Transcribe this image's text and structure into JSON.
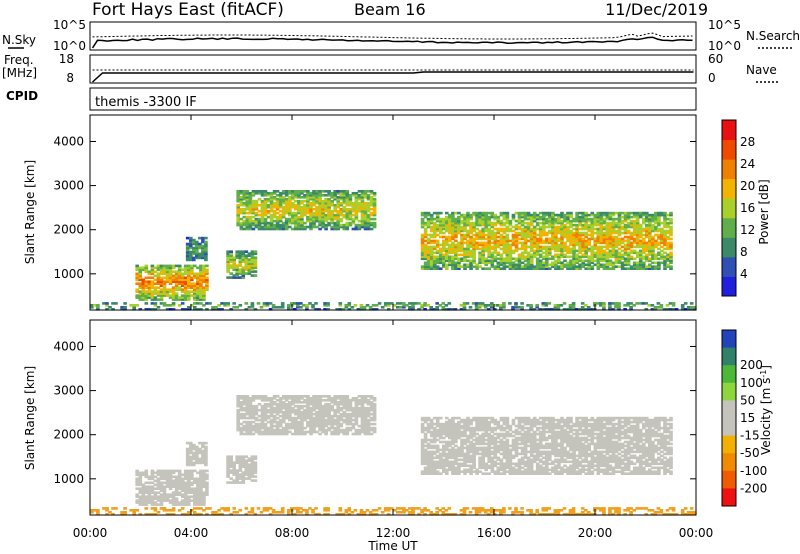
{
  "header": {
    "radar": "Fort Hays East (fitACF)",
    "beam": "Beam 16",
    "date": "11/Dec/2019"
  },
  "noise_panel": {
    "left_label": "N.Sky",
    "left_ticks": [
      "10^5",
      "10^0"
    ],
    "right_ticks": [
      "10^5",
      "10^0"
    ],
    "right_label": "N.Search"
  },
  "freq_panel": {
    "left_label_line1": "Freq.",
    "left_label_line2": "[MHz]",
    "left_ticks": [
      "18",
      "8"
    ],
    "right_ticks": [
      "60",
      "0"
    ],
    "right_label": "Nave"
  },
  "cpid_panel": {
    "label": "CPID",
    "text": "themis -3300 IF"
  },
  "colors": {
    "power": [
      "#1f1fdd",
      "#2f4fb4",
      "#3a8a6a",
      "#5fae4a",
      "#a8cf2a",
      "#f2b400",
      "#f08000",
      "#f04a00",
      "#e81010"
    ],
    "velocity": [
      "#ee1111",
      "#f05a00",
      "#f08a00",
      "#f2b000",
      "#c4c4bc",
      "#c4c4bc",
      "#8ed63e",
      "#4cb838",
      "#30806a",
      "#2244bb"
    ],
    "ground": "#f0a020"
  },
  "chart_data": [
    {
      "type": "heatmap",
      "title": "",
      "xlabel": "",
      "ylabel": "Slant Range [km]",
      "xlim": [
        "00:00",
        "24:00"
      ],
      "ylim": [
        180,
        4600
      ],
      "y_ticks": [
        "1000",
        "2000",
        "3000",
        "4000"
      ],
      "colorbar": {
        "label": "Power [dB]",
        "range": [
          0,
          32
        ],
        "ticks": [
          "4",
          "8",
          "12",
          "16",
          "20",
          "24",
          "28"
        ]
      },
      "echo_regions": [
        {
          "t_start": 1.8,
          "t_end": 4.6,
          "range_low": 400,
          "range_high": 1200,
          "power_db": 22
        },
        {
          "t_start": 3.8,
          "t_end": 4.6,
          "range_low": 1300,
          "range_high": 1800,
          "power_db": 10
        },
        {
          "t_start": 5.4,
          "t_end": 6.6,
          "range_low": 900,
          "range_high": 1500,
          "power_db": 16
        },
        {
          "t_start": 5.8,
          "t_end": 11.2,
          "range_low": 2000,
          "range_high": 2900,
          "power_db": 17
        },
        {
          "t_start": 13.1,
          "t_end": 23.0,
          "range_low": 1100,
          "range_high": 2400,
          "power_db": 19
        },
        {
          "t_start": 0.0,
          "t_end": 23.9,
          "range_low": 180,
          "range_high": 350,
          "power_db": 12
        }
      ]
    },
    {
      "type": "heatmap",
      "title": "",
      "xlabel": "Time UT",
      "ylabel": "Slant Range [km]",
      "xlim": [
        "00:00",
        "24:00"
      ],
      "ylim": [
        180,
        4600
      ],
      "y_ticks": [
        "1000",
        "2000",
        "3000",
        "4000"
      ],
      "x_ticks": [
        "00:00",
        "04:00",
        "08:00",
        "12:00",
        "16:00",
        "20:00",
        "00:00"
      ],
      "colorbar": {
        "label": "Velocity [m s-1]",
        "tick_values": [
          -200,
          -100,
          -50,
          -15,
          15,
          50,
          100,
          200
        ],
        "ticks": [
          "-200",
          "-100",
          "-50",
          "-15",
          "15",
          "50",
          "100",
          "200"
        ]
      },
      "echo_regions": [
        {
          "t_start": 1.8,
          "t_end": 4.6,
          "range_low": 400,
          "range_high": 1200,
          "velocity": 40
        },
        {
          "t_start": 5.4,
          "t_end": 6.6,
          "range_low": 900,
          "range_high": 1500,
          "velocity": 40
        },
        {
          "t_start": 5.8,
          "t_end": 11.2,
          "range_low": 2000,
          "range_high": 2900,
          "velocity": 0
        },
        {
          "t_start": 13.1,
          "t_end": 23.0,
          "range_low": 1100,
          "range_high": 2400,
          "velocity": 0
        },
        {
          "t_start": 0.0,
          "t_end": 23.9,
          "range_low": 180,
          "range_high": 450,
          "velocity": -40
        }
      ]
    }
  ]
}
